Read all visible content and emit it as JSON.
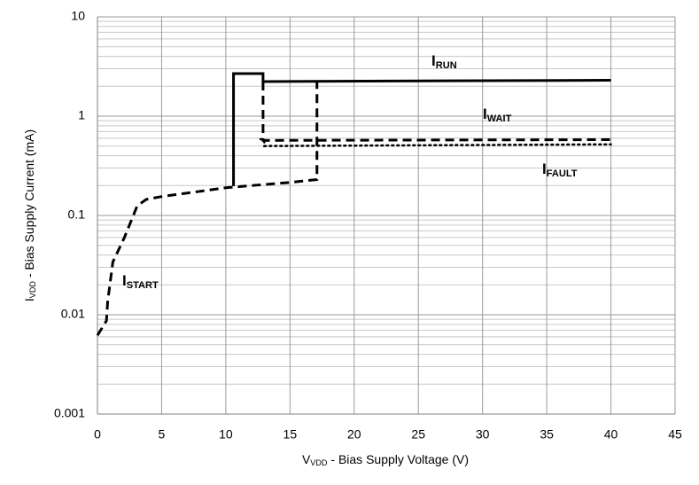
{
  "chart_data": {
    "type": "line",
    "xlabel": "VVDD - Bias Supply Voltage (V)",
    "ylabel": "IVDD - Bias Supply Current (mA)",
    "xlim": [
      0,
      45
    ],
    "xticks": [
      0,
      5,
      10,
      15,
      20,
      25,
      30,
      35,
      40,
      45
    ],
    "ylim": [
      0.001,
      10
    ],
    "yticks": [
      0.001,
      0.01,
      0.1,
      1,
      10
    ],
    "log_y": true,
    "grid": true,
    "minor_grid": true,
    "series": [
      {
        "name": "ISTART",
        "color": "#000000",
        "style": "dashed",
        "x": [
          0,
          0.7,
          0.8,
          1.2,
          2.1,
          3.1,
          3.8,
          5,
          10,
          12,
          15,
          17.1,
          17.1
        ],
        "values": [
          0.0062,
          0.0087,
          0.0137,
          0.034,
          0.06,
          0.125,
          0.145,
          0.155,
          0.19,
          0.2,
          0.215,
          0.23,
          2.23
        ]
      },
      {
        "name": "IRUN",
        "color": "#000000",
        "style": "solid",
        "x": [
          10.6,
          10.6,
          12.9,
          12.9,
          40
        ],
        "values": [
          0.197,
          2.68,
          2.68,
          2.23,
          2.3
        ]
      },
      {
        "name": "IWAIT",
        "color": "#000000",
        "style": "dashed",
        "x": [
          12.9,
          12.9,
          40
        ],
        "values": [
          2.23,
          0.57,
          0.58
        ]
      },
      {
        "name": "IFAULT",
        "color": "#000000",
        "style": "dotted",
        "x": [
          12.7,
          13,
          13,
          40
        ],
        "values": [
          0.586,
          0.586,
          0.5,
          0.52
        ]
      }
    ]
  }
}
